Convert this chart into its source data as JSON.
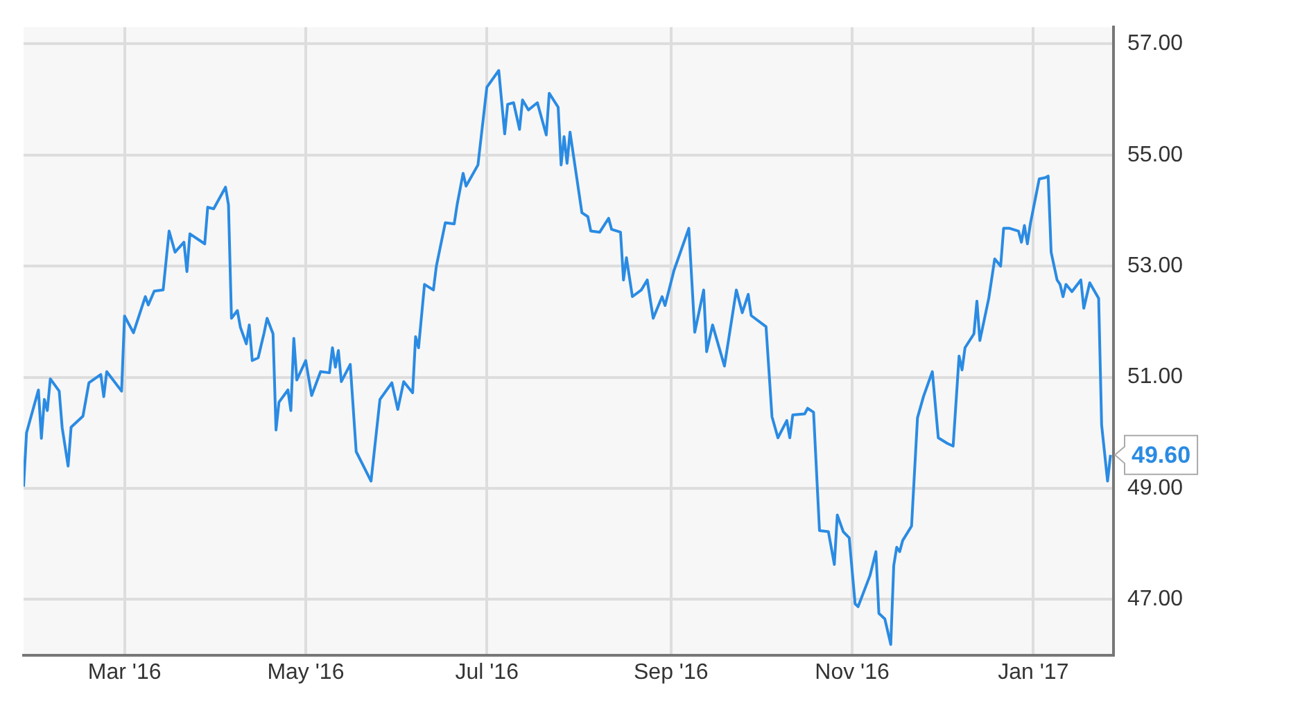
{
  "chart_data": {
    "type": "line",
    "color": "#2a8be3",
    "marker": "none",
    "line_style": "solid",
    "grid": true,
    "xlim": [
      "2016-01-27",
      "2017-01-28"
    ],
    "xticks": [
      {
        "value": "2016-03-01",
        "label": "Mar '16"
      },
      {
        "value": "2016-05-01",
        "label": "May '16"
      },
      {
        "value": "2016-07-01",
        "label": "Jul '16"
      },
      {
        "value": "2016-09-01",
        "label": "Sep '16"
      },
      {
        "value": "2016-11-01",
        "label": "Nov '16"
      },
      {
        "value": "2017-01-01",
        "label": "Jan '17"
      }
    ],
    "ylim": [
      46,
      57.3
    ],
    "yticks": [
      {
        "value": 47,
        "label": "47.00"
      },
      {
        "value": 49,
        "label": "49.00"
      },
      {
        "value": 51,
        "label": "51.00"
      },
      {
        "value": 53,
        "label": "53.00"
      },
      {
        "value": 55,
        "label": "55.00"
      },
      {
        "value": 57,
        "label": "57.00"
      }
    ],
    "x": [
      "2016-01-27",
      "2016-01-28",
      "2016-02-01",
      "2016-02-02",
      "2016-02-03",
      "2016-02-04",
      "2016-02-05",
      "2016-02-08",
      "2016-02-09",
      "2016-02-11",
      "2016-02-12",
      "2016-02-16",
      "2016-02-18",
      "2016-02-22",
      "2016-02-23",
      "2016-02-24",
      "2016-02-29",
      "2016-03-01",
      "2016-03-04",
      "2016-03-08",
      "2016-03-09",
      "2016-03-11",
      "2016-03-14",
      "2016-03-16",
      "2016-03-18",
      "2016-03-21",
      "2016-03-22",
      "2016-03-23",
      "2016-03-28",
      "2016-03-29",
      "2016-03-31",
      "2016-04-04",
      "2016-04-05",
      "2016-04-06",
      "2016-04-08",
      "2016-04-09",
      "2016-04-11",
      "2016-04-12",
      "2016-04-13",
      "2016-04-15",
      "2016-04-17",
      "2016-04-18",
      "2016-04-20",
      "2016-04-21",
      "2016-04-22",
      "2016-04-25",
      "2016-04-26",
      "2016-04-27",
      "2016-04-28",
      "2016-05-01",
      "2016-05-03",
      "2016-05-06",
      "2016-05-09",
      "2016-05-10",
      "2016-05-11",
      "2016-05-12",
      "2016-05-13",
      "2016-05-16",
      "2016-05-18",
      "2016-05-23",
      "2016-05-26",
      "2016-05-30",
      "2016-06-01",
      "2016-06-03",
      "2016-06-06",
      "2016-06-07",
      "2016-06-08",
      "2016-06-10",
      "2016-06-13",
      "2016-06-14",
      "2016-06-17",
      "2016-06-20",
      "2016-06-21",
      "2016-06-23",
      "2016-06-24",
      "2016-06-28",
      "2016-07-01",
      "2016-07-05",
      "2016-07-07",
      "2016-07-08",
      "2016-07-10",
      "2016-07-12",
      "2016-07-13",
      "2016-07-15",
      "2016-07-18",
      "2016-07-21",
      "2016-07-22",
      "2016-07-25",
      "2016-07-26",
      "2016-07-27",
      "2016-07-28",
      "2016-07-29",
      "2016-08-02",
      "2016-08-04",
      "2016-08-05",
      "2016-08-08",
      "2016-08-11",
      "2016-08-12",
      "2016-08-15",
      "2016-08-16",
      "2016-08-17",
      "2016-08-19",
      "2016-08-22",
      "2016-08-24",
      "2016-08-26",
      "2016-08-29",
      "2016-08-30",
      "2016-09-02",
      "2016-09-07",
      "2016-09-09",
      "2016-09-12",
      "2016-09-13",
      "2016-09-15",
      "2016-09-19",
      "2016-09-23",
      "2016-09-25",
      "2016-09-27",
      "2016-09-28",
      "2016-10-03",
      "2016-10-05",
      "2016-10-07",
      "2016-10-10",
      "2016-10-11",
      "2016-10-12",
      "2016-10-16",
      "2016-10-17",
      "2016-10-19",
      "2016-10-21",
      "2016-10-24",
      "2016-10-26",
      "2016-10-27",
      "2016-10-29",
      "2016-10-31",
      "2016-11-02",
      "2016-11-03",
      "2016-11-07",
      "2016-11-09",
      "2016-11-10",
      "2016-11-12",
      "2016-11-14",
      "2016-11-15",
      "2016-11-16",
      "2016-11-17",
      "2016-11-18",
      "2016-11-21",
      "2016-11-23",
      "2016-11-25",
      "2016-11-28",
      "2016-11-30",
      "2016-12-03",
      "2016-12-05",
      "2016-12-07",
      "2016-12-08",
      "2016-12-09",
      "2016-12-12",
      "2016-12-13",
      "2016-12-14",
      "2016-12-17",
      "2016-12-19",
      "2016-12-21",
      "2016-12-22",
      "2016-12-24",
      "2016-12-27",
      "2016-12-28",
      "2016-12-29",
      "2016-12-30",
      "2016-12-31",
      "2017-01-03",
      "2017-01-05",
      "2017-01-06",
      "2017-01-07",
      "2017-01-09",
      "2017-01-10",
      "2017-01-11",
      "2017-01-12",
      "2017-01-14",
      "2017-01-17",
      "2017-01-18",
      "2017-01-20",
      "2017-01-23",
      "2017-01-24",
      "2017-01-26",
      "2017-01-27"
    ],
    "values": [
      49.03,
      50.0,
      50.77,
      49.9,
      50.6,
      50.4,
      50.97,
      50.75,
      50.09,
      49.4,
      50.1,
      50.3,
      50.9,
      51.05,
      50.65,
      51.1,
      50.75,
      52.1,
      51.8,
      52.45,
      52.3,
      52.55,
      52.57,
      53.63,
      53.25,
      53.43,
      52.9,
      53.58,
      53.4,
      54.06,
      54.03,
      54.42,
      54.1,
      52.06,
      52.2,
      51.9,
      51.6,
      51.94,
      51.3,
      51.35,
      51.8,
      52.06,
      51.78,
      50.05,
      50.55,
      50.77,
      50.4,
      51.7,
      50.95,
      51.3,
      50.67,
      51.1,
      51.08,
      51.53,
      51.18,
      51.48,
      50.92,
      51.23,
      49.66,
      49.13,
      50.6,
      50.9,
      50.42,
      50.92,
      50.72,
      51.73,
      51.53,
      52.67,
      52.57,
      53.0,
      53.78,
      53.76,
      54.11,
      54.67,
      54.44,
      54.82,
      56.22,
      56.52,
      55.38,
      55.91,
      55.94,
      55.46,
      55.99,
      55.81,
      55.94,
      55.36,
      56.11,
      55.86,
      54.82,
      55.33,
      54.85,
      55.41,
      53.96,
      53.89,
      53.63,
      53.61,
      53.86,
      53.66,
      53.61,
      52.75,
      53.15,
      52.45,
      52.57,
      52.75,
      52.06,
      52.45,
      52.29,
      52.92,
      53.68,
      51.81,
      52.57,
      51.46,
      51.94,
      51.2,
      52.57,
      52.16,
      52.49,
      52.11,
      51.91,
      50.29,
      49.91,
      50.22,
      49.91,
      50.32,
      50.34,
      50.44,
      50.37,
      48.24,
      48.22,
      47.63,
      48.52,
      48.22,
      48.11,
      46.92,
      46.87,
      47.43,
      47.86,
      46.75,
      46.65,
      46.19,
      47.61,
      47.94,
      47.86,
      48.06,
      48.32,
      50.27,
      50.65,
      51.1,
      49.91,
      49.81,
      49.76,
      51.38,
      51.13,
      51.53,
      51.78,
      52.37,
      51.66,
      52.42,
      53.13,
      53.0,
      53.68,
      53.68,
      53.63,
      53.43,
      53.73,
      53.4,
      53.76,
      54.57,
      54.59,
      54.62,
      53.25,
      52.75,
      52.67,
      52.45,
      52.67,
      52.54,
      52.75,
      52.24,
      52.7,
      52.42,
      50.14,
      49.13,
      49.6
    ],
    "annotations": [
      {
        "text": "49.60",
        "x": "2017-01-27",
        "y": 49.6
      }
    ]
  }
}
